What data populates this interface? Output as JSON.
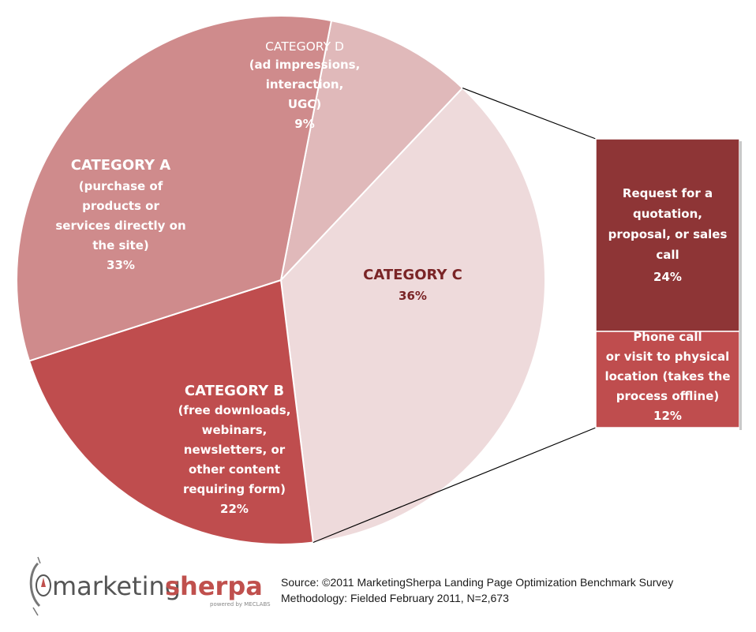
{
  "chart_data": {
    "type": "pie",
    "slices": [
      {
        "key": "D",
        "title": "CATEGORY D",
        "desc": [
          "(ad impressions,",
          "interaction,",
          "UGC)"
        ],
        "pct_label": "9%",
        "value": 9,
        "color": "#e0b9ba",
        "text_color": "#ffffff"
      },
      {
        "key": "C",
        "title": "CATEGORY C",
        "desc": [],
        "pct_label": "36%",
        "value": 36,
        "color": "#eedadb",
        "text_color": "#7a2426"
      },
      {
        "key": "B",
        "title": "CATEGORY B",
        "desc": [
          "(free downloads,",
          "webinars,",
          "newsletters, or",
          "other content",
          "requiring form)"
        ],
        "pct_label": "22%",
        "value": 22,
        "color": "#bf4d4e",
        "text_color": "#ffffff"
      },
      {
        "key": "A",
        "title": "CATEGORY A",
        "desc": [
          "(purchase of",
          "products or",
          "services directly on",
          "the site)"
        ],
        "pct_label": "33%",
        "value": 33,
        "color": "#cf8b8c",
        "text_color": "#ffffff"
      }
    ],
    "breakdown": {
      "parent": "C",
      "segments": [
        {
          "lines": [
            "Request for a",
            "quotation,",
            "proposal, or sales",
            "call"
          ],
          "pct_label": "24%",
          "value": 24,
          "color": "#8e3536"
        },
        {
          "lines": [
            "Phone call",
            "or visit to physical",
            "location (takes the",
            "process offline)"
          ],
          "pct_label": "12%",
          "value": 12,
          "color": "#bf4d4e"
        }
      ]
    }
  },
  "logo": {
    "text_part1": "marketing",
    "text_part2": "sherpa",
    "tagline": "powered by MECLABS",
    "color_part1": "#555555",
    "color_part2": "#c0504d"
  },
  "source": {
    "line1": "Source: ©2011 MarketingSherpa Landing Page Optimization Benchmark Survey",
    "line2": "Methodology: Fielded February 2011, N=2,673"
  }
}
